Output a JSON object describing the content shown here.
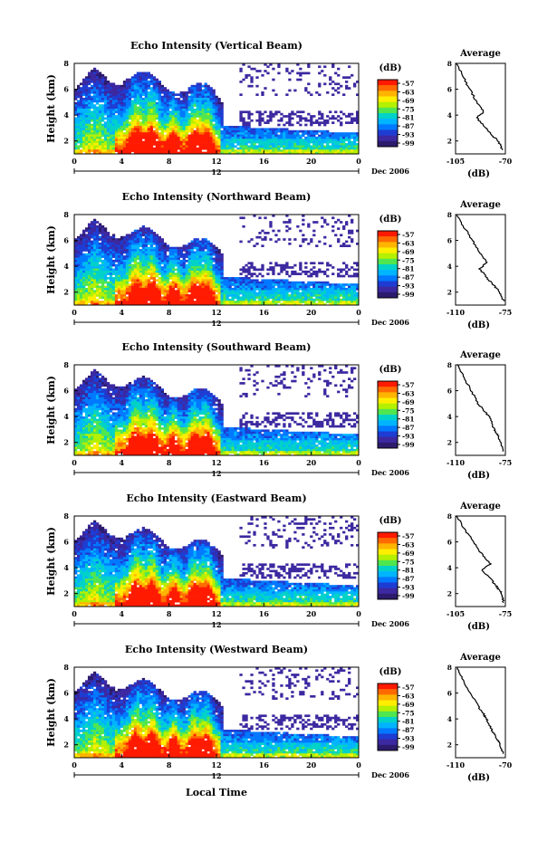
{
  "figure": {
    "panels": [
      {
        "title": "Echo Intensity (Vertical Beam)",
        "avg_xticks": [
          "-105",
          "-70"
        ]
      },
      {
        "title": "Echo Intensity (Northward Beam)",
        "avg_xticks": [
          "-110",
          "-75"
        ]
      },
      {
        "title": "Echo Intensity (Southward Beam)",
        "avg_xticks": [
          "-110",
          "-75"
        ]
      },
      {
        "title": "Echo Intensity (Eastward Beam)",
        "avg_xticks": [
          "-105",
          "-75"
        ]
      },
      {
        "title": "Echo Intensity (Westward Beam)",
        "avg_xticks": [
          "-110",
          "-70"
        ]
      }
    ],
    "ylabel": "Height (km)",
    "yticks": [
      "2",
      "4",
      "6",
      "8"
    ],
    "xticks": [
      "0",
      "4",
      "8",
      "12",
      "16",
      "20",
      "0"
    ],
    "date_marker": "12",
    "date_label": "Dec 2006",
    "xlabel": "Local Time",
    "colorbar_unit": "(dB)",
    "colorbar_ticks": [
      "-57",
      "-63",
      "-69",
      "-75",
      "-81",
      "-87",
      "-93",
      "-99"
    ],
    "colorbar_colors": [
      "#ff1a00",
      "#ff6a00",
      "#ffb400",
      "#ffee00",
      "#b4f000",
      "#50e650",
      "#00d2c8",
      "#00b4ff",
      "#0078ff",
      "#1e3cd2",
      "#3c28a0",
      "#2c1b6c"
    ],
    "avg_title": "Average",
    "avg_xlabel": "(dB)",
    "avg_yticks": [
      "2",
      "4",
      "6",
      "8"
    ]
  },
  "chart_data": [
    {
      "type": "heatmap",
      "title": "Echo Intensity (Vertical Beam)",
      "xlabel": "Local Time",
      "ylabel": "Height (km)",
      "xlim": [
        0,
        24
      ],
      "ylim": [
        1,
        8
      ],
      "colorbar_label": "(dB)",
      "colorbar_range": [
        -99,
        -57
      ],
      "notes": "Strongest echoes (-57 to -63 dB) between about 4 and 12 LT below 4 km; echoes top near 7-8 km before 12 LT, decreasing afterwards."
    },
    {
      "type": "line",
      "title": "Average",
      "xlabel": "(dB)",
      "xlim": [
        -105,
        -70
      ],
      "ylim": [
        1,
        8
      ],
      "x": [
        -104,
        -100,
        -95,
        -90,
        -85,
        -90,
        -84,
        -80,
        -75,
        -72
      ],
      "y": [
        8,
        7,
        6,
        5,
        4.3,
        3.8,
        3,
        2.5,
        2,
        1.3
      ]
    },
    {
      "type": "heatmap",
      "title": "Echo Intensity (Northward Beam)",
      "xlabel": "Local Time",
      "ylabel": "Height (km)",
      "xlim": [
        0,
        24
      ],
      "ylim": [
        1,
        8
      ],
      "colorbar_label": "(dB)",
      "colorbar_range": [
        -99,
        -57
      ]
    },
    {
      "type": "line",
      "title": "Average",
      "xlabel": "(dB)",
      "xlim": [
        -110,
        -75
      ],
      "ylim": [
        1,
        8
      ],
      "x": [
        -109,
        -104,
        -98,
        -93,
        -88,
        -93,
        -87,
        -83,
        -79,
        -76
      ],
      "y": [
        8,
        7,
        6,
        5,
        4.3,
        3.8,
        3,
        2.5,
        2,
        1.3
      ]
    },
    {
      "type": "heatmap",
      "title": "Echo Intensity (Southward Beam)",
      "xlabel": "Local Time",
      "ylabel": "Height (km)",
      "xlim": [
        0,
        24
      ],
      "ylim": [
        1,
        8
      ],
      "colorbar_label": "(dB)",
      "colorbar_range": [
        -99,
        -57
      ]
    },
    {
      "type": "line",
      "title": "Average",
      "xlabel": "(dB)",
      "xlim": [
        -110,
        -75
      ],
      "ylim": [
        1,
        8
      ],
      "x": [
        -109,
        -104,
        -99,
        -94,
        -89,
        -85,
        -83,
        -80,
        -78,
        -77
      ],
      "y": [
        8,
        7,
        6,
        5,
        4.3,
        3.8,
        3,
        2.5,
        2,
        1.3
      ]
    },
    {
      "type": "heatmap",
      "title": "Echo Intensity (Eastward Beam)",
      "xlabel": "Local Time",
      "ylabel": "Height (km)",
      "xlim": [
        0,
        24
      ],
      "ylim": [
        1,
        8
      ],
      "colorbar_label": "(dB)",
      "colorbar_range": [
        -99,
        -57
      ]
    },
    {
      "type": "line",
      "title": "Average",
      "xlabel": "(dB)",
      "xlim": [
        -105,
        -75
      ],
      "ylim": [
        1,
        8
      ],
      "x": [
        -104,
        -100,
        -94,
        -89,
        -84,
        -89,
        -83,
        -80,
        -77,
        -76
      ],
      "y": [
        8,
        7,
        6,
        5,
        4.3,
        3.8,
        3,
        2.5,
        2,
        1.3
      ]
    },
    {
      "type": "heatmap",
      "title": "Echo Intensity (Westward Beam)",
      "xlabel": "Local Time",
      "ylabel": "Height (km)",
      "xlim": [
        0,
        24
      ],
      "ylim": [
        1,
        8
      ],
      "colorbar_label": "(dB)",
      "colorbar_range": [
        -99,
        -57
      ]
    },
    {
      "type": "line",
      "title": "Average",
      "xlabel": "(dB)",
      "xlim": [
        -110,
        -70
      ],
      "ylim": [
        1,
        8
      ],
      "x": [
        -109,
        -104,
        -98,
        -92,
        -87,
        -84,
        -80,
        -77,
        -74,
        -72
      ],
      "y": [
        8,
        7,
        6,
        5,
        4.3,
        3.8,
        3,
        2.5,
        2,
        1.3
      ]
    }
  ]
}
